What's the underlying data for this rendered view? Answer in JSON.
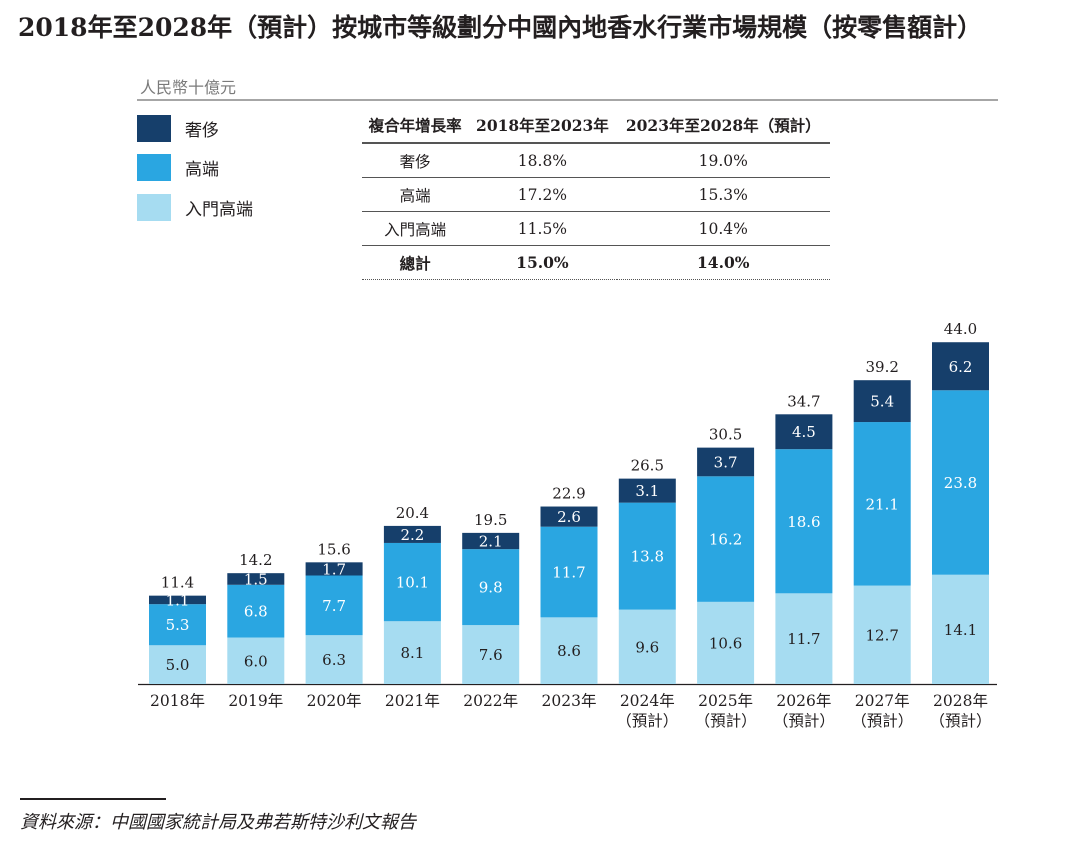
{
  "title": "2018年至2028年（預計）按城市等級劃分中國內地香水行業市場規模（按零售額計）",
  "unit": "人民幣十億元",
  "legend": [
    {
      "label": "奢侈",
      "color": "#163f6b"
    },
    {
      "label": "高端",
      "color": "#2aa6e1"
    },
    {
      "label": "入門高端",
      "color": "#a6dcf1"
    }
  ],
  "cagr_table": {
    "headers": [
      "複合年增長率",
      "2018年至2023年",
      "2023年至2028年（預計）"
    ],
    "rows": [
      [
        "奢侈",
        "18.8%",
        "19.0%"
      ],
      [
        "高端",
        "17.2%",
        "15.3%"
      ],
      [
        "入門高端",
        "11.5%",
        "10.4%"
      ],
      [
        "總計",
        "15.0%",
        "14.0%"
      ]
    ]
  },
  "chart_data": {
    "type": "bar",
    "stacked": true,
    "categories": [
      [
        "2018年"
      ],
      [
        "2019年"
      ],
      [
        "2020年"
      ],
      [
        "2021年"
      ],
      [
        "2022年"
      ],
      [
        "2023年"
      ],
      [
        "2024年",
        "（預計）"
      ],
      [
        "2025年",
        "（預計）"
      ],
      [
        "2026年",
        "（預計）"
      ],
      [
        "2027年",
        "（預計）"
      ],
      [
        "2028年",
        "（預計）"
      ]
    ],
    "series": [
      {
        "name": "入門高端",
        "color": "#a6dcf1",
        "label_color": "#231f20",
        "values": [
          5.0,
          6.0,
          6.3,
          8.1,
          7.6,
          8.6,
          9.6,
          10.6,
          11.7,
          12.7,
          14.1
        ]
      },
      {
        "name": "高端",
        "color": "#2aa6e1",
        "label_color": "#ffffff",
        "values": [
          5.3,
          6.8,
          7.7,
          10.1,
          9.8,
          11.7,
          13.8,
          16.2,
          18.6,
          21.1,
          23.8
        ]
      },
      {
        "name": "奢侈",
        "color": "#163f6b",
        "label_color": "#ffffff",
        "values": [
          1.1,
          1.5,
          1.7,
          2.2,
          2.1,
          2.6,
          3.1,
          3.7,
          4.5,
          5.4,
          6.2
        ]
      }
    ],
    "totals": [
      11.4,
      14.2,
      15.6,
      20.4,
      19.5,
      22.9,
      26.5,
      30.5,
      34.7,
      39.2,
      44.0
    ],
    "ylim": [
      0,
      44.0
    ],
    "grid": false,
    "legend_position": "top-left",
    "xlabel": "",
    "ylabel": "人民幣十億元"
  },
  "source": "資料來源：中國國家統計局及弗若斯特沙利文報告"
}
